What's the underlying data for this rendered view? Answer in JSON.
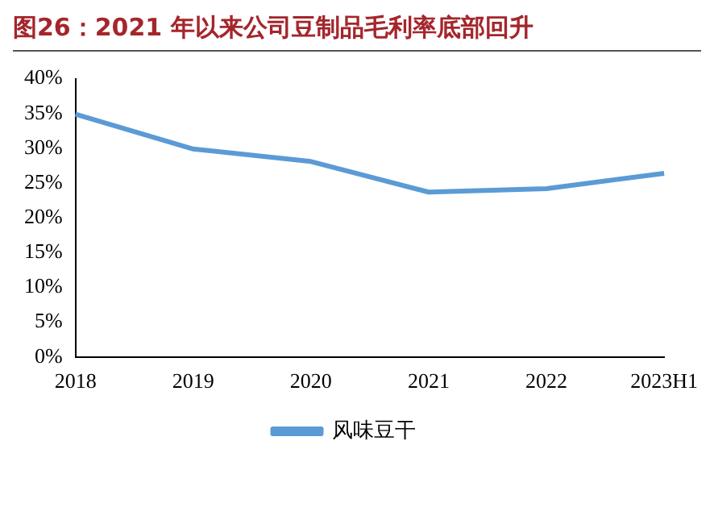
{
  "chart_data": {
    "type": "line",
    "title": "图26：2021 年以来公司豆制品毛利率底部回升",
    "categories": [
      "2018",
      "2019",
      "2020",
      "2021",
      "2022",
      "2023H1"
    ],
    "series": [
      {
        "name": "风味豆干",
        "color": "#5b9bd5",
        "values": [
          34.9,
          29.9,
          28.1,
          23.7,
          24.2,
          26.4
        ]
      }
    ],
    "ylim": [
      0,
      40
    ],
    "yticks": [
      {
        "value": 0,
        "label": "0%"
      },
      {
        "value": 5,
        "label": "5%"
      },
      {
        "value": 10,
        "label": "10%"
      },
      {
        "value": 15,
        "label": "15%"
      },
      {
        "value": 20,
        "label": "20%"
      },
      {
        "value": 25,
        "label": "25%"
      },
      {
        "value": 30,
        "label": "30%"
      },
      {
        "value": 35,
        "label": "35%"
      },
      {
        "value": 40,
        "label": "40%"
      }
    ],
    "grid": false,
    "legend": "bottom",
    "marker": "none",
    "line_style": "solid"
  }
}
